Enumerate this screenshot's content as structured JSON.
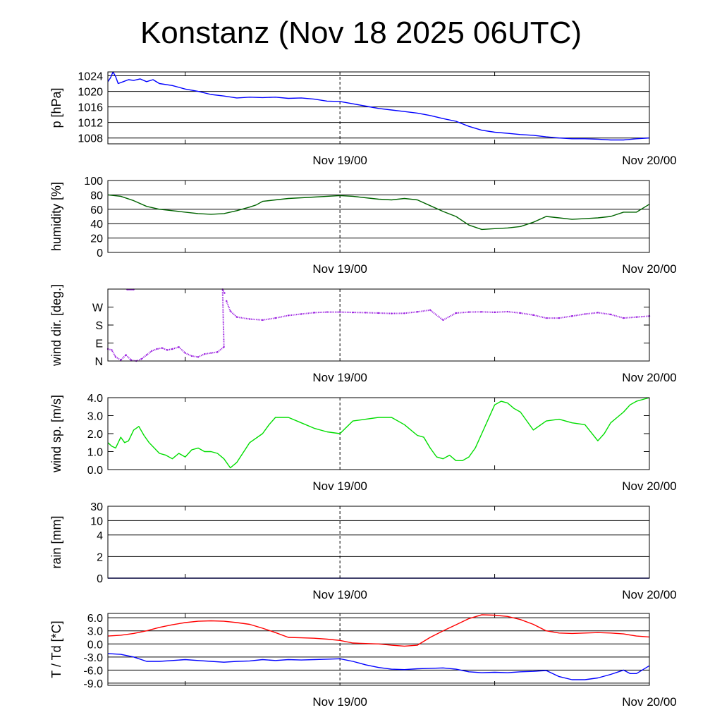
{
  "title": "Konstanz (Nov 18 2025 06UTC)",
  "chart_data": [
    {
      "type": "line",
      "ylabel": "p [hPa]",
      "ylim": [
        1006.5,
        1025
      ],
      "yticks": [
        {
          "value": 1008,
          "label": "1008"
        },
        {
          "value": 1012,
          "label": "1012"
        },
        {
          "value": 1016,
          "label": "1016"
        },
        {
          "value": 1020,
          "label": "1020"
        },
        {
          "value": 1024,
          "label": "1024"
        }
      ],
      "xticks": [
        {
          "hour": 18,
          "label": "Nov 19/00"
        },
        {
          "hour": 42,
          "label": "Nov 20/00"
        }
      ],
      "grid": true,
      "series": [
        {
          "color": "#0000ff",
          "x": [
            0,
            0.2,
            0.4,
            0.6,
            0.8,
            1.2,
            1.6,
            2,
            2.5,
            3,
            3.5,
            4,
            5,
            6,
            7,
            8,
            9,
            10,
            11,
            12,
            13,
            14,
            15,
            16,
            17,
            18,
            19,
            20,
            21,
            22,
            23,
            24,
            25,
            26,
            27,
            28,
            29,
            30,
            31,
            32,
            33,
            34,
            35,
            36,
            37,
            38,
            39,
            40,
            41,
            42
          ],
          "y": [
            1022.5,
            1023.5,
            1025,
            1023.8,
            1022,
            1022.5,
            1023,
            1022.8,
            1023.2,
            1022.5,
            1023,
            1022,
            1021.5,
            1020.6,
            1020,
            1019.2,
            1018.8,
            1018.3,
            1018.5,
            1018.4,
            1018.5,
            1018.2,
            1018.3,
            1018,
            1017.5,
            1017.4,
            1016.8,
            1016.2,
            1015.6,
            1015.2,
            1014.8,
            1014.4,
            1013.8,
            1013,
            1012.3,
            1011,
            1010,
            1009.5,
            1009.2,
            1008.9,
            1008.7,
            1008.3,
            1008,
            1007.8,
            1007.8,
            1007.7,
            1007.5,
            1007.5,
            1007.8,
            1008
          ]
        }
      ]
    },
    {
      "type": "line",
      "ylabel": "humidity [%]",
      "ylim": [
        0,
        100
      ],
      "yticks": [
        {
          "value": 0,
          "label": "0"
        },
        {
          "value": 20,
          "label": "20"
        },
        {
          "value": 40,
          "label": "40"
        },
        {
          "value": 60,
          "label": "60"
        },
        {
          "value": 80,
          "label": "80"
        },
        {
          "value": 100,
          "label": "100"
        }
      ],
      "xticks": [
        {
          "hour": 18,
          "label": "Nov 19/00"
        },
        {
          "hour": 42,
          "label": "Nov 20/00"
        }
      ],
      "grid": true,
      "series": [
        {
          "color": "#006400",
          "x": [
            0,
            1,
            2,
            3,
            4,
            5,
            6,
            7,
            8,
            9,
            10,
            11,
            11.5,
            12,
            13,
            14,
            15,
            16,
            17,
            18,
            19,
            20,
            21,
            22,
            23,
            24,
            25,
            26,
            27,
            28,
            29,
            30,
            31,
            32,
            33,
            34,
            35,
            36,
            37,
            38,
            39,
            40,
            41,
            42
          ],
          "y": [
            80,
            78,
            72,
            64,
            60,
            58,
            56,
            54,
            53,
            54,
            58,
            63,
            66,
            71,
            73,
            75,
            76,
            77,
            78,
            79,
            78,
            76,
            74,
            73,
            75,
            73,
            65,
            57,
            50,
            38,
            32,
            33,
            34,
            36,
            42,
            50,
            48,
            46,
            47,
            48,
            50,
            56,
            56,
            67
          ]
        }
      ]
    },
    {
      "type": "scatter",
      "ylabel": "wind dir. [deg.]",
      "ylim": [
        0,
        360
      ],
      "yticks": [
        {
          "value": 0,
          "label": "N"
        },
        {
          "value": 90,
          "label": "E"
        },
        {
          "value": 180,
          "label": "S"
        },
        {
          "value": 270,
          "label": "W"
        }
      ],
      "xticks": [
        {
          "hour": 18,
          "label": "Nov 19/00"
        },
        {
          "hour": 42,
          "label": "Nov 20/00"
        }
      ],
      "grid": false,
      "series": [
        {
          "color": "#9a1fe0",
          "x": [
            0,
            0.3,
            0.6,
            1,
            1.4,
            1.8,
            2.2,
            2.6,
            3,
            3.4,
            3.8,
            4.2,
            4.6,
            5,
            5.5,
            6,
            6.5,
            7,
            7.5,
            8,
            8.5,
            9,
            8.9,
            9.05
          ],
          "y": [
            60,
            55,
            20,
            5,
            30,
            5,
            0,
            10,
            30,
            50,
            60,
            65,
            55,
            60,
            70,
            40,
            25,
            20,
            35,
            40,
            45,
            70,
            359,
            340
          ]
        },
        {
          "color": "#9a1fe0",
          "x": [
            1.5,
            2
          ],
          "y": [
            358,
            358
          ]
        },
        {
          "color": "#9a1fe0",
          "x": [
            9.2,
            9.5,
            10,
            11,
            12,
            13,
            14,
            15,
            16,
            17,
            18,
            19,
            20,
            21,
            22,
            23,
            24,
            25,
            26,
            27,
            28,
            29,
            30,
            31,
            32,
            33,
            34,
            35,
            36,
            37,
            38,
            39,
            40,
            41,
            42
          ],
          "y": [
            300,
            250,
            220,
            210,
            205,
            215,
            228,
            235,
            242,
            245,
            245,
            243,
            242,
            240,
            238,
            239,
            246,
            255,
            205,
            240,
            245,
            246,
            244,
            247,
            240,
            230,
            215,
            215,
            225,
            235,
            242,
            233,
            215,
            220,
            225
          ]
        }
      ]
    },
    {
      "type": "line",
      "ylabel": "wind sp. [m/s]",
      "ylim": [
        0,
        4
      ],
      "yticks": [
        {
          "value": 0,
          "label": "0.0"
        },
        {
          "value": 1,
          "label": "1.0"
        },
        {
          "value": 2,
          "label": "2.0"
        },
        {
          "value": 3,
          "label": "3.0"
        },
        {
          "value": 4,
          "label": "4.0"
        }
      ],
      "xticks": [
        {
          "hour": 18,
          "label": "Nov 19/00"
        },
        {
          "hour": 42,
          "label": "Nov 20/00"
        }
      ],
      "grid": false,
      "series": [
        {
          "color": "#00dd00",
          "x": [
            0,
            0.3,
            0.6,
            1,
            1.3,
            1.6,
            2,
            2.4,
            2.8,
            3.2,
            3.6,
            4,
            4.5,
            5,
            5.5,
            6,
            6.5,
            7,
            7.5,
            8,
            8.5,
            9,
            9.5,
            10,
            11,
            12,
            12.5,
            13,
            14,
            15,
            16,
            17,
            18,
            19,
            20,
            21,
            22,
            23,
            24,
            24.5,
            25,
            25.5,
            26,
            26.5,
            27,
            27.5,
            28,
            28.5,
            29,
            30,
            30.5,
            31,
            31.5,
            32,
            33,
            34,
            35,
            36,
            37,
            38,
            38.5,
            39,
            39.5,
            40,
            40.5,
            41,
            41.5,
            42
          ],
          "y": [
            1.5,
            1.3,
            1.2,
            1.8,
            1.5,
            1.6,
            2.2,
            2.4,
            1.9,
            1.5,
            1.2,
            0.9,
            0.8,
            0.6,
            0.9,
            0.7,
            1.1,
            1.2,
            1.0,
            1.0,
            0.9,
            0.6,
            0.1,
            0.4,
            1.5,
            2.0,
            2.5,
            2.9,
            2.9,
            2.6,
            2.3,
            2.1,
            2.0,
            2.7,
            2.8,
            2.9,
            2.9,
            2.5,
            1.9,
            1.8,
            1.2,
            0.7,
            0.6,
            0.8,
            0.5,
            0.5,
            0.7,
            1.2,
            2.0,
            3.6,
            3.8,
            3.7,
            3.4,
            3.2,
            2.2,
            2.7,
            2.8,
            2.6,
            2.5,
            1.6,
            2.0,
            2.6,
            2.9,
            3.2,
            3.6,
            3.8,
            3.9,
            4.0
          ]
        }
      ]
    },
    {
      "type": "line",
      "ylabel": "rain [mm]",
      "ylim": [
        0,
        30
      ],
      "yticks": [
        {
          "value": 0,
          "label": "0"
        },
        {
          "value": 2,
          "label": "2"
        },
        {
          "value": 4,
          "label": "4"
        },
        {
          "value": 10,
          "label": "10"
        },
        {
          "value": 30,
          "label": "30"
        }
      ],
      "xticks": [
        {
          "hour": 18,
          "label": "Nov 19/00"
        },
        {
          "hour": 42,
          "label": "Nov 20/00"
        }
      ],
      "grid": true,
      "series": [
        {
          "color": "#0000aa",
          "x": [
            0,
            42
          ],
          "y": [
            0,
            0
          ]
        }
      ]
    },
    {
      "type": "line",
      "ylabel": "T / Td [*C]",
      "ylim": [
        -9.5,
        7
      ],
      "yticks": [
        {
          "value": -9,
          "label": "-9.0"
        },
        {
          "value": -6,
          "label": "-6.0"
        },
        {
          "value": -3,
          "label": "-3.0"
        },
        {
          "value": 0,
          "label": "0.0"
        },
        {
          "value": 3,
          "label": "3.0"
        },
        {
          "value": 6,
          "label": "6.0"
        }
      ],
      "xticks": [
        {
          "hour": 18,
          "label": "Nov 19/00"
        },
        {
          "hour": 42,
          "label": "Nov 20/00"
        }
      ],
      "grid": true,
      "series": [
        {
          "name": "T",
          "color": "#ff0000",
          "x": [
            0,
            1,
            2,
            3,
            4,
            5,
            6,
            7,
            8,
            9,
            10,
            11,
            12,
            13,
            14,
            15,
            16,
            17,
            18,
            19,
            20,
            21,
            22,
            23,
            24,
            25,
            26,
            27,
            28,
            29,
            30,
            31,
            32,
            33,
            34,
            35,
            36,
            37,
            38,
            39,
            40,
            41,
            42
          ],
          "y": [
            1.8,
            2.0,
            2.4,
            3.0,
            3.8,
            4.4,
            4.9,
            5.2,
            5.3,
            5.2,
            4.9,
            4.5,
            3.6,
            2.6,
            1.5,
            1.4,
            1.3,
            1.1,
            0.8,
            0.2,
            0.1,
            0.0,
            -0.3,
            -0.5,
            -0.3,
            1.5,
            3.0,
            4.4,
            5.8,
            6.7,
            6.6,
            6.3,
            5.6,
            4.5,
            3.0,
            2.5,
            2.4,
            2.5,
            2.6,
            2.5,
            2.3,
            1.8,
            1.6
          ]
        },
        {
          "name": "Td",
          "color": "#0000ff",
          "x": [
            0,
            1,
            2,
            3,
            4,
            5,
            6,
            7,
            8,
            9,
            10,
            11,
            12,
            13,
            14,
            15,
            16,
            17,
            18,
            19,
            20,
            21,
            22,
            23,
            24,
            25,
            26,
            27,
            28,
            29,
            30,
            31,
            32,
            33,
            34,
            35,
            36,
            37,
            38,
            39,
            40,
            40.5,
            41,
            42
          ],
          "y": [
            -2.2,
            -2.4,
            -3.0,
            -4.0,
            -4.0,
            -3.8,
            -3.6,
            -3.8,
            -4.0,
            -4.2,
            -4.0,
            -3.9,
            -3.6,
            -3.8,
            -3.6,
            -3.7,
            -3.6,
            -3.5,
            -3.4,
            -4.0,
            -4.8,
            -5.4,
            -5.8,
            -5.9,
            -5.7,
            -5.6,
            -5.5,
            -5.8,
            -6.4,
            -6.6,
            -6.5,
            -6.6,
            -6.4,
            -6.3,
            -6.1,
            -7.5,
            -8.2,
            -8.2,
            -7.8,
            -7.0,
            -6.0,
            -6.8,
            -6.8,
            -5.0
          ]
        }
      ]
    }
  ]
}
